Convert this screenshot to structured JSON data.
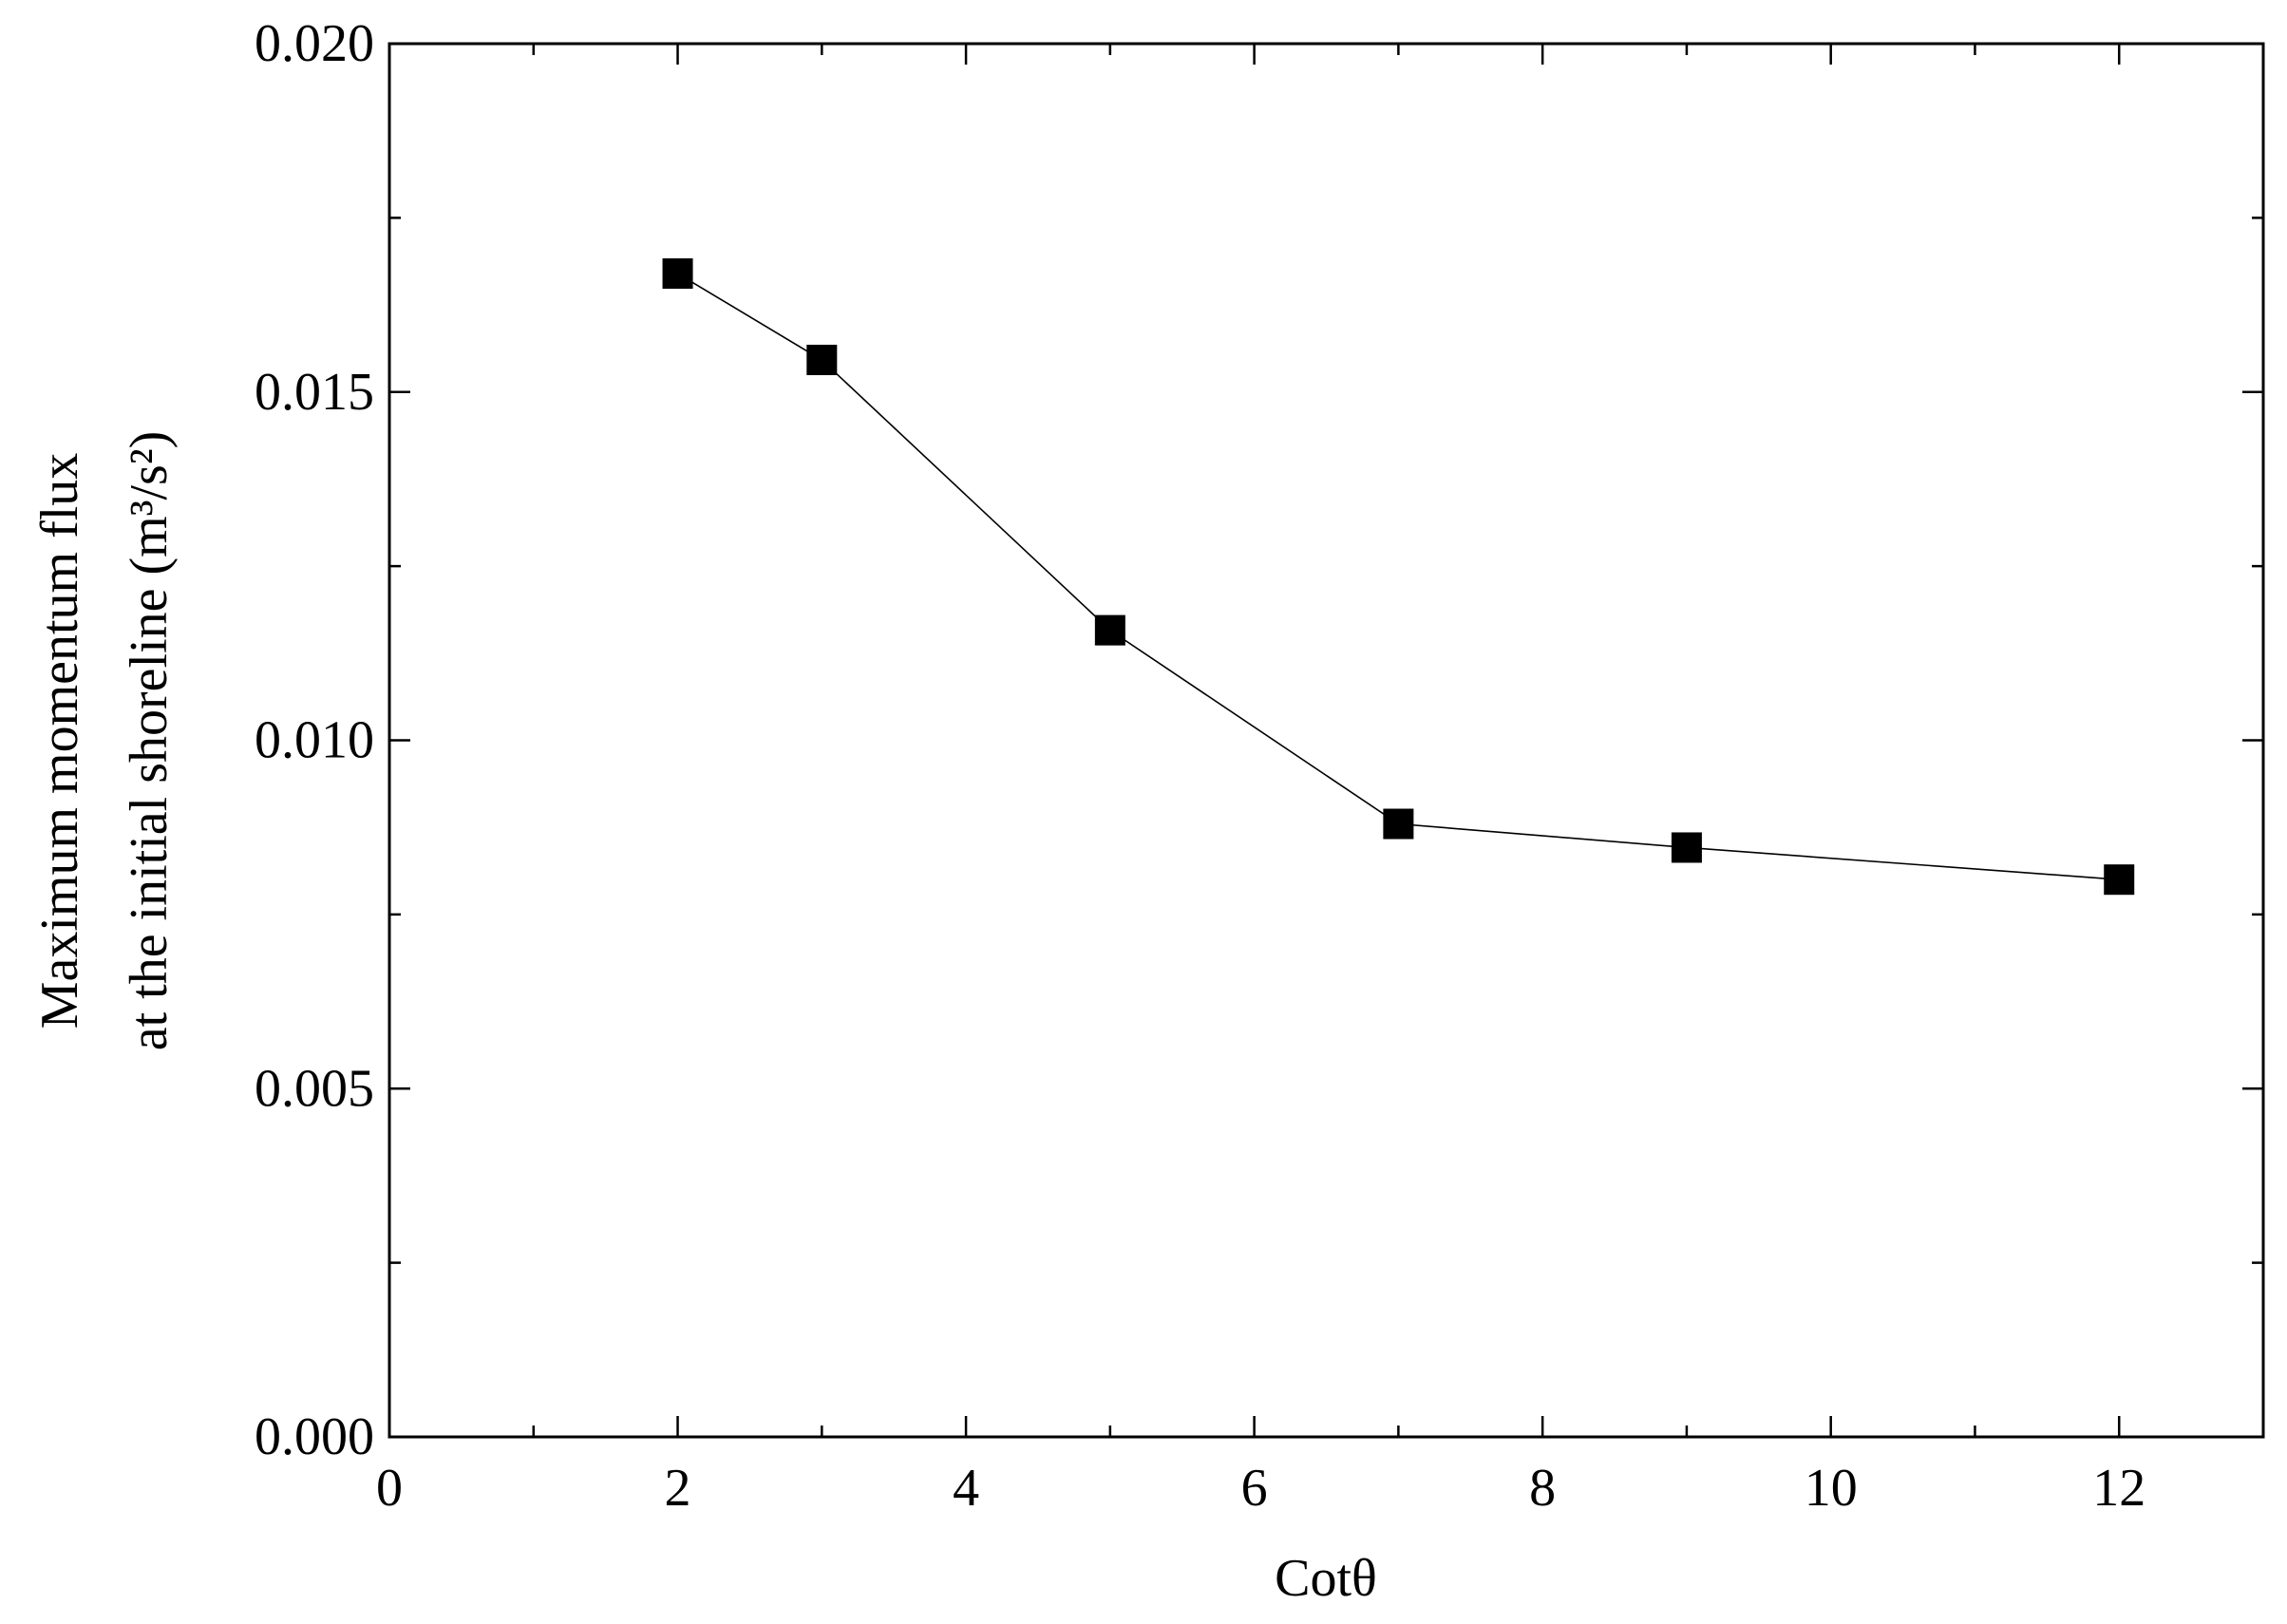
{
  "chart_data": {
    "type": "line",
    "xlabel": "Cotθ",
    "ylabel": [
      "Maximum momentum flux",
      "at the initial shoreline (m³/s²)"
    ],
    "x": [
      2,
      3,
      5,
      7,
      9,
      12
    ],
    "series": [
      {
        "color": "#000000",
        "values": [
          0.0167,
          0.01546,
          0.01158,
          0.0088,
          0.00846,
          0.008
        ]
      }
    ],
    "xlim": [
      0,
      13
    ],
    "xticks": [
      0,
      2,
      4,
      6,
      8,
      10,
      12
    ],
    "ylim": [
      0,
      0.02
    ],
    "yticks": [
      {
        "value": 0,
        "label": "0.000"
      },
      {
        "value": 0.005,
        "label": "0.005"
      },
      {
        "value": 0.01,
        "label": "0.010"
      },
      {
        "value": 0.015,
        "label": "0.015"
      },
      {
        "value": 0.02,
        "label": "0.020"
      }
    ],
    "grid": false
  }
}
